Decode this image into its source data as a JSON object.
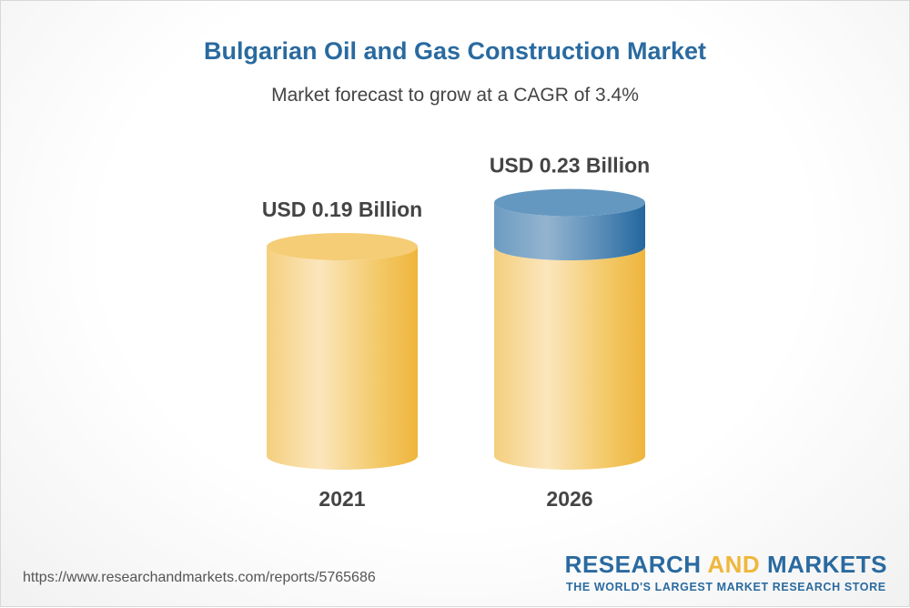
{
  "chart_data": {
    "type": "bar",
    "style": "3d-cylinder",
    "title": "Bulgarian Oil and Gas Construction Market",
    "subtitle": "Market forecast to grow at a CAGR of 3.4%",
    "categories": [
      "2021",
      "2026"
    ],
    "values": [
      0.19,
      0.23
    ],
    "data_labels": [
      "USD 0.19 Billion",
      "USD 0.23 Billion"
    ],
    "unit": "USD Billion",
    "grid": false,
    "colors": {
      "base": "#f2c25a",
      "growth": "#2a6aa0"
    }
  },
  "footer": {
    "url": "https://www.researchandmarkets.com/reports/5765686",
    "logo_part1": "RESEARCH",
    "logo_part2": "AND",
    "logo_part3": "MARKETS",
    "tagline": "THE WORLD'S LARGEST MARKET RESEARCH STORE"
  }
}
